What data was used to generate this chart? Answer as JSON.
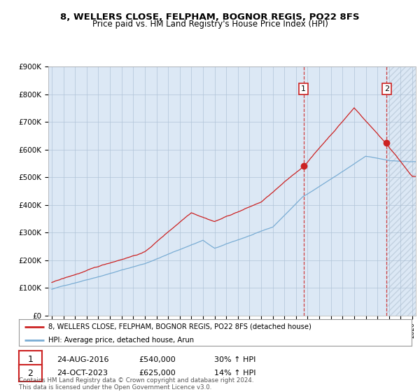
{
  "title": "8, WELLERS CLOSE, FELPHAM, BOGNOR REGIS, PO22 8FS",
  "subtitle": "Price paid vs. HM Land Registry's House Price Index (HPI)",
  "ylim": [
    0,
    900000
  ],
  "yticks": [
    0,
    100000,
    200000,
    300000,
    400000,
    500000,
    600000,
    700000,
    800000,
    900000
  ],
  "ytick_labels": [
    "£0",
    "£100K",
    "£200K",
    "£300K",
    "£400K",
    "£500K",
    "£600K",
    "£700K",
    "£800K",
    "£900K"
  ],
  "hpi_color": "#7aadd4",
  "price_color": "#cc2222",
  "sale1_x": 2016.64,
  "sale2_x": 2023.8,
  "sale1_price": 540000,
  "sale2_price": 625000,
  "sale1": {
    "label": "1",
    "date": "24-AUG-2016",
    "price": "£540,000",
    "hpi": "30% ↑ HPI"
  },
  "sale2": {
    "label": "2",
    "date": "24-OCT-2023",
    "price": "£625,000",
    "hpi": "14% ↑ HPI"
  },
  "legend_line1": "8, WELLERS CLOSE, FELPHAM, BOGNOR REGIS, PO22 8FS (detached house)",
  "legend_line2": "HPI: Average price, detached house, Arun",
  "footer": "Contains HM Land Registry data © Crown copyright and database right 2024.\nThis data is licensed under the Open Government Licence v3.0.",
  "bg_color": "#ffffff",
  "plot_bg": "#dce8f5",
  "grid_color": "#b0c4d8",
  "start_year": 1995,
  "end_year": 2026
}
